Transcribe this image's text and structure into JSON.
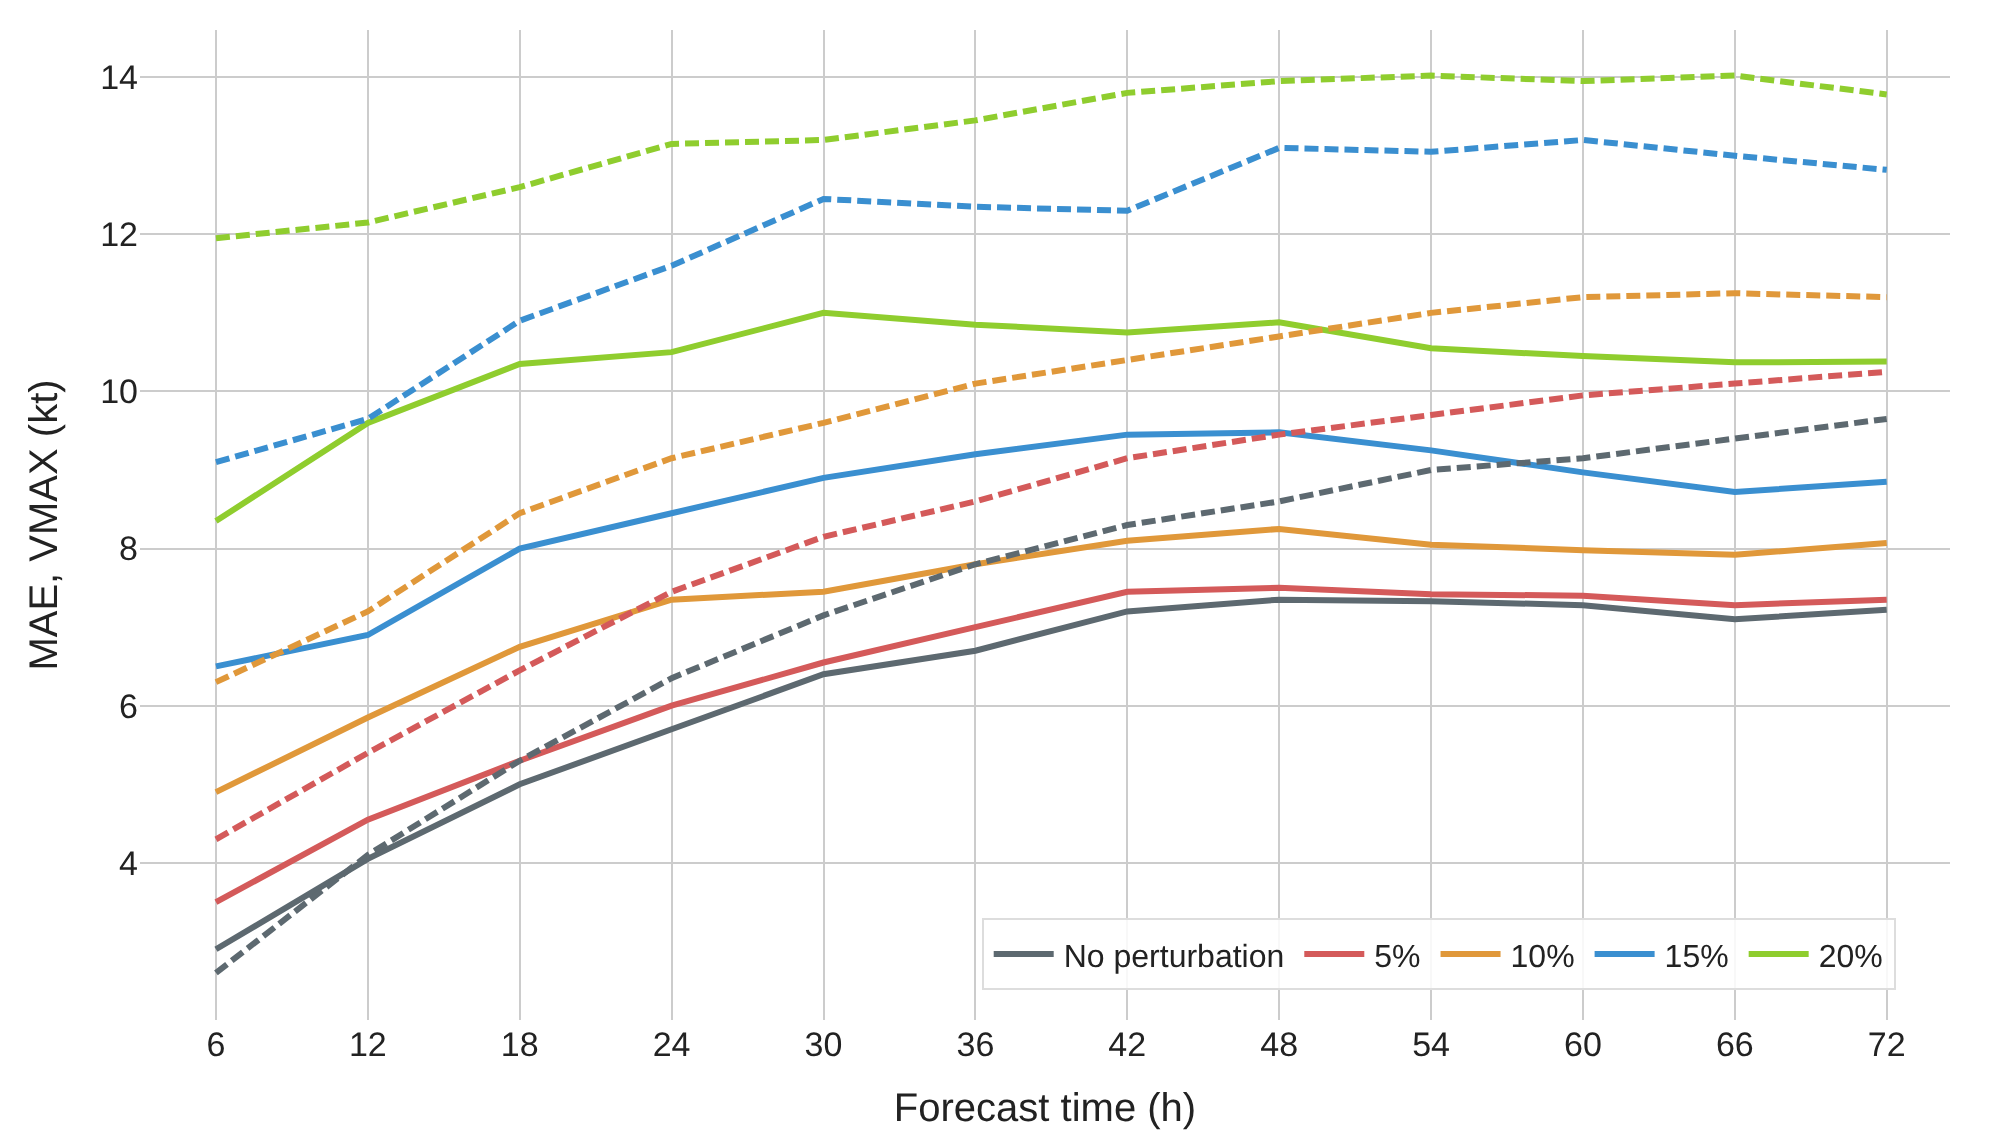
{
  "chart_data": {
    "type": "line",
    "xlabel": "Forecast time (h)",
    "ylabel": "MAE, VMAX (kt)",
    "x": [
      6,
      12,
      18,
      24,
      30,
      36,
      42,
      48,
      54,
      60,
      66,
      72
    ],
    "xlim": [
      3,
      74.5
    ],
    "xticks": [
      6,
      12,
      18,
      24,
      30,
      36,
      42,
      48,
      54,
      60,
      66,
      72
    ],
    "ylim": [
      2,
      14.6
    ],
    "yticks": [
      4,
      6,
      8,
      10,
      12,
      14
    ],
    "grid": true,
    "legend": "bottom right",
    "marker": "none",
    "series": [
      {
        "name": "No perturbation",
        "color": "#5d6970",
        "line_style": "solid",
        "values": [
          2.9,
          4.05,
          5.0,
          5.7,
          6.4,
          6.7,
          7.2,
          7.35,
          7.33,
          7.28,
          7.1,
          7.22
        ]
      },
      {
        "name": "5%",
        "color": "#d45a5a",
        "line_style": "solid",
        "values": [
          3.5,
          4.55,
          5.3,
          6.0,
          6.55,
          7.0,
          7.45,
          7.5,
          7.42,
          7.4,
          7.28,
          7.35
        ]
      },
      {
        "name": "10%",
        "color": "#e0983a",
        "line_style": "solid",
        "values": [
          4.9,
          5.85,
          6.75,
          7.35,
          7.45,
          7.8,
          8.1,
          8.25,
          8.05,
          7.98,
          7.92,
          8.07
        ]
      },
      {
        "name": "15%",
        "color": "#3a8fd0",
        "line_style": "solid",
        "values": [
          6.5,
          6.9,
          8.0,
          8.45,
          8.9,
          9.2,
          9.45,
          9.48,
          9.25,
          8.97,
          8.72,
          8.85
        ]
      },
      {
        "name": "20%",
        "color": "#8fcd2e",
        "line_style": "solid",
        "values": [
          8.35,
          9.6,
          10.35,
          10.5,
          11.0,
          10.85,
          10.75,
          10.88,
          10.55,
          10.45,
          10.37,
          10.38
        ]
      },
      {
        "color": "#5d6970",
        "line_style": "dashed",
        "values": [
          2.6,
          4.1,
          5.3,
          6.35,
          7.15,
          7.8,
          8.3,
          8.6,
          9.0,
          9.15,
          9.4,
          9.65
        ]
      },
      {
        "color": "#d45a5a",
        "line_style": "dashed",
        "values": [
          4.3,
          5.4,
          6.45,
          7.45,
          8.15,
          8.6,
          9.15,
          9.45,
          9.7,
          9.95,
          10.1,
          10.25
        ]
      },
      {
        "color": "#e0983a",
        "line_style": "dashed",
        "values": [
          6.3,
          7.2,
          8.45,
          9.15,
          9.6,
          10.1,
          10.4,
          10.7,
          11.0,
          11.2,
          11.25,
          11.2
        ]
      },
      {
        "color": "#3a8fd0",
        "line_style": "dashed",
        "values": [
          9.1,
          9.65,
          10.9,
          11.6,
          12.45,
          12.35,
          12.3,
          13.1,
          13.05,
          13.2,
          13.0,
          12.82
        ]
      },
      {
        "color": "#8fcd2e",
        "line_style": "dashed",
        "values": [
          11.95,
          12.15,
          12.6,
          13.15,
          13.2,
          13.45,
          13.8,
          13.95,
          14.02,
          13.95,
          14.02,
          13.78
        ]
      }
    ]
  }
}
